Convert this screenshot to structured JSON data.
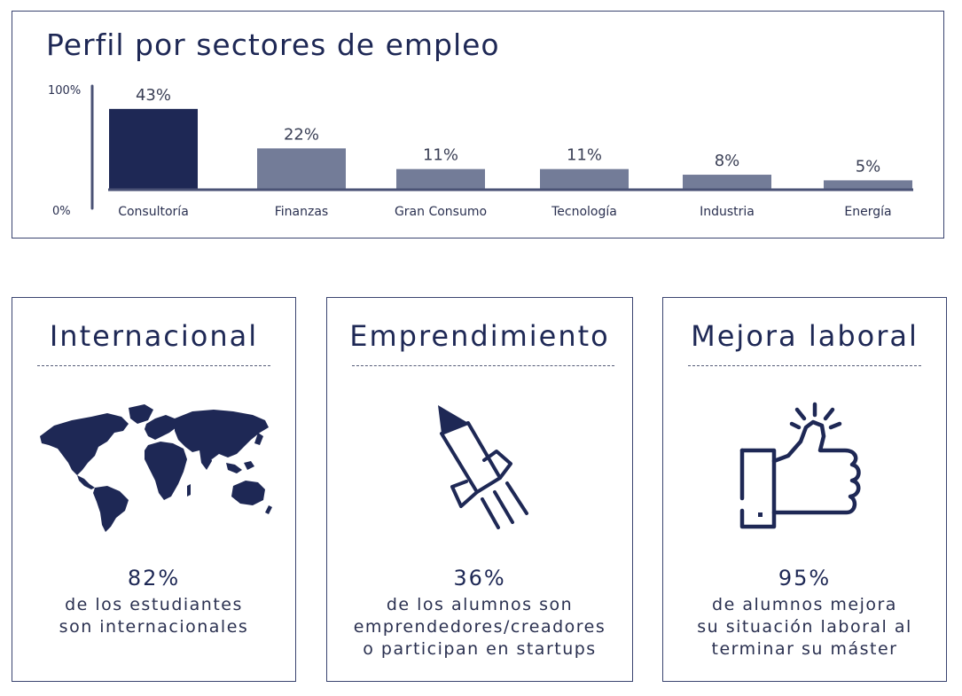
{
  "chart_data": {
    "type": "bar",
    "title": "Perfil por  sectores de empleo",
    "categories": [
      "Consultoría",
      "Finanzas",
      "Gran Consumo",
      "Tecnología",
      "Industria",
      "Energía"
    ],
    "values": [
      43,
      22,
      11,
      11,
      8,
      5
    ],
    "value_labels": [
      "43%",
      "22%",
      "11%",
      "11%",
      "8%",
      "5%"
    ],
    "y_tick_labels": [
      "100%",
      "0%"
    ],
    "ylim": [
      0,
      100
    ],
    "xlabel": "",
    "ylabel": "",
    "grid": false,
    "colors": {
      "highlight": "#1e2855",
      "bar": "#737c98",
      "axis": "#4a5275"
    }
  },
  "cards": [
    {
      "title": "Internacional",
      "icon": "world-map-icon",
      "percent": "82%",
      "description": [
        "de los estudiantes",
        "son internacionales"
      ]
    },
    {
      "title": "Emprendimiento",
      "icon": "rocket-icon",
      "percent": "36%",
      "description": [
        "de los  alumnos son",
        "emprendedores/creadores",
        "o participan en startups"
      ]
    },
    {
      "title": "Mejora laboral",
      "icon": "thumbs-up-icon",
      "percent": "95%",
      "description": [
        "de alumnos mejora",
        "su situación laboral al",
        "terminar su máster"
      ]
    }
  ],
  "colors": {
    "primary": "#1e2855",
    "border": "#3a4470"
  }
}
